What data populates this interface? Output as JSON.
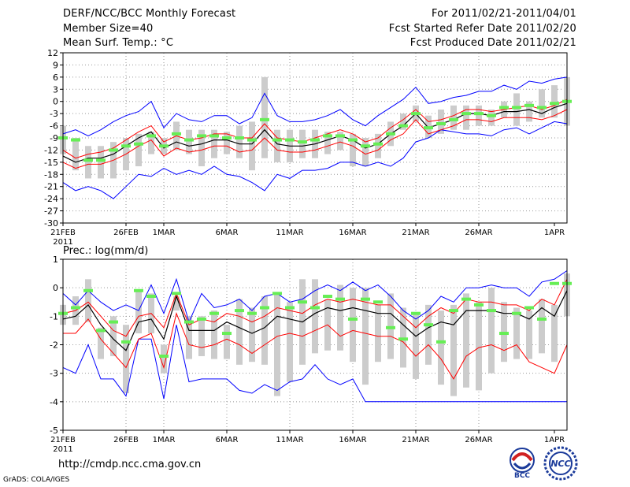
{
  "header": {
    "title": "DERF/NCC/BCC Monthly Forecast",
    "member_size": "Member Size=40",
    "variable": "Mean Surf. Temp.: °C",
    "for_range": "For 2011/02/21-2011/04/01",
    "started": "Fcst Started Refer Date 2011/02/20",
    "produced": "Fcst Produced Date 2011/02/21"
  },
  "precip_title": "Prec.: log(mm/d)",
  "footer": {
    "url": "http://cmdp.ncc.cma.gov.cn",
    "credit": "GrADS: COLA/IGES",
    "logo1_text": "BCC",
    "logo2_text": "NCC"
  },
  "colors": {
    "box": "#cccccc",
    "obs": "#66ee55",
    "spread": "#ff0000",
    "extreme": "#0000ff",
    "mean": "#000000",
    "grid": "#999999"
  },
  "chart_data": [
    {
      "type": "line",
      "title": "Mean Surf. Temp.: °C",
      "days": 40,
      "x_tick_labels": [
        "21FEB",
        "26FEB",
        "1MAR",
        "6MAR",
        "11MAR",
        "16MAR",
        "21MAR",
        "26MAR",
        "1APR"
      ],
      "x_tick_days": [
        0,
        5,
        8,
        13,
        18,
        23,
        28,
        33,
        39
      ],
      "year_label": "2011",
      "ylim": [
        -30,
        12
      ],
      "yticks": [
        -30,
        -27,
        -24,
        -21,
        -18,
        -15,
        -12,
        -9,
        -6,
        -3,
        0,
        3,
        6,
        9,
        12
      ],
      "series": [
        {
          "name": "max",
          "values": [
            -8,
            -7,
            -8.5,
            -7,
            -5,
            -3.5,
            -2.5,
            0,
            -6.5,
            -3,
            -4.5,
            -5,
            -3.5,
            -3.5,
            -5.5,
            -4,
            2,
            -3.5,
            -5,
            -5,
            -4.5,
            -3.5,
            -2,
            -4.5,
            -6,
            -3.5,
            -1.5,
            0.5,
            3.5,
            -0.5,
            0,
            1,
            1.5,
            2.5,
            2.5,
            4,
            3,
            5,
            4.5,
            5.5,
            6
          ]
        },
        {
          "name": "upper",
          "values": [
            -12,
            -14,
            -13,
            -12.5,
            -11.5,
            -9.5,
            -7.5,
            -6,
            -10,
            -8.5,
            -9.5,
            -9,
            -8,
            -8,
            -9,
            -9,
            -5.5,
            -9,
            -9.5,
            -10,
            -9,
            -8,
            -7,
            -8,
            -10,
            -9,
            -6.5,
            -4.5,
            -2,
            -5,
            -4.5,
            -3.5,
            -2,
            -2,
            -2.5,
            -2,
            -1.5,
            -1,
            -2,
            -1,
            0.5
          ]
        },
        {
          "name": "mean",
          "values": [
            -13.5,
            -15,
            -14,
            -14,
            -13,
            -11,
            -9,
            -7.5,
            -11.5,
            -10,
            -11,
            -10.5,
            -9.5,
            -9.5,
            -10.5,
            -10.5,
            -7,
            -10.5,
            -11,
            -11,
            -10.5,
            -9.5,
            -8.5,
            -9.5,
            -11.5,
            -10.5,
            -8,
            -6,
            -3,
            -6.5,
            -5.5,
            -4.5,
            -3,
            -3,
            -3.5,
            -2.5,
            -2.5,
            -2,
            -3,
            -1.5,
            -0.5
          ]
        },
        {
          "name": "lower",
          "values": [
            -15,
            -16.5,
            -15.5,
            -15.5,
            -14.5,
            -13,
            -11,
            -9.5,
            -13.5,
            -11.5,
            -12.5,
            -12,
            -11,
            -11,
            -12.5,
            -12,
            -9,
            -12,
            -12.5,
            -12.5,
            -12,
            -11,
            -10,
            -11,
            -13,
            -12,
            -9.5,
            -8,
            -4.5,
            -8,
            -7,
            -6,
            -4.5,
            -4.5,
            -5,
            -4,
            -4,
            -4,
            -4.5,
            -3.5,
            -2
          ]
        },
        {
          "name": "min",
          "values": [
            -20,
            -22,
            -21,
            -22,
            -24,
            -21,
            -18,
            -18.5,
            -16.5,
            -18,
            -17,
            -18,
            -16,
            -18,
            -18.5,
            -20,
            -22,
            -18,
            -19,
            -17,
            -17,
            -16.5,
            -15,
            -15,
            -16,
            -15,
            -16,
            -14,
            -10,
            -9,
            -7,
            -7.5,
            -8,
            -8,
            -8.5,
            -7,
            -6.5,
            -8,
            -6.5,
            -5,
            -5.5
          ]
        },
        {
          "name": "box_top",
          "values": [
            -6,
            -9,
            -11,
            -11,
            -10,
            -9,
            -8,
            -7.5,
            -9,
            -5,
            -7,
            -7,
            -7,
            -7.5,
            -6,
            -5,
            6,
            -7,
            -7,
            -7,
            -7,
            -7.5,
            -7.5,
            -8,
            -9,
            -8,
            -5,
            -3,
            -1,
            -3.5,
            -2,
            -1,
            -1,
            -1,
            -2,
            0,
            2,
            0,
            3,
            4,
            6
          ]
        },
        {
          "name": "box_bottom",
          "values": [
            -13,
            -17,
            -19,
            -19,
            -19,
            -17,
            -16,
            -13,
            -13,
            -12,
            -13,
            -16,
            -14,
            -13,
            -14,
            -17,
            -14,
            -15,
            -15,
            -14,
            -14,
            -13,
            -12,
            -16,
            -16,
            -14,
            -11,
            -7,
            -5,
            -9,
            -8,
            -7,
            -7,
            -6,
            -6,
            -4,
            -6,
            -5,
            -4,
            -4,
            -6
          ]
        },
        {
          "name": "obs",
          "values": [
            -9,
            -9.5,
            -14.5,
            -14.5,
            -12,
            -11,
            -10.5,
            -8.5,
            -11,
            -8,
            -9.5,
            -8.5,
            -8.5,
            -9,
            -9,
            -9.5,
            -4.5,
            -9.5,
            -9.5,
            -10,
            -9.5,
            -8.5,
            -8.5,
            -9.5,
            -11,
            -10.5,
            -8,
            -6,
            -3,
            -6.5,
            -5.5,
            -4.5,
            -3,
            -3,
            -3.5,
            -1.5,
            -1.5,
            -1,
            -1.5,
            -0.5,
            0
          ]
        }
      ]
    },
    {
      "type": "line",
      "title": "Prec.: log(mm/d)",
      "days": 40,
      "x_tick_labels": [
        "21FEB",
        "26FEB",
        "1MAR",
        "6MAR",
        "11MAR",
        "16MAR",
        "21MAR",
        "26MAR",
        "1APR"
      ],
      "x_tick_days": [
        0,
        5,
        8,
        13,
        18,
        23,
        28,
        33,
        39
      ],
      "year_label": "2011",
      "ylim": [
        -5,
        1
      ],
      "yticks": [
        -5,
        -4,
        -3,
        -2,
        -1,
        0,
        1
      ],
      "series": [
        {
          "name": "max",
          "values": [
            -0.2,
            -0.6,
            -0.1,
            -0.5,
            -0.8,
            -0.6,
            -0.8,
            0.1,
            -0.9,
            0.3,
            -1.2,
            -0.2,
            -0.7,
            -0.6,
            -0.4,
            -0.8,
            -0.3,
            -0.2,
            -0.5,
            -0.4,
            -0.1,
            0.1,
            -0.1,
            0.2,
            -0.1,
            0.1,
            -0.3,
            -0.8,
            -1.1,
            -0.8,
            -0.3,
            -0.5,
            0.0,
            0.0,
            0.1,
            0.0,
            0.0,
            -0.3,
            0.2,
            0.3,
            0.6
          ]
        },
        {
          "name": "upper",
          "values": [
            -0.9,
            -0.8,
            -0.5,
            -1.0,
            -1.5,
            -1.7,
            -1.0,
            -0.9,
            -1.4,
            -0.2,
            -1.3,
            -1.1,
            -1.2,
            -0.9,
            -1.0,
            -1.2,
            -1.0,
            -0.7,
            -0.8,
            -0.9,
            -0.6,
            -0.4,
            -0.5,
            -0.4,
            -0.5,
            -0.6,
            -0.6,
            -1.0,
            -1.4,
            -1.0,
            -0.7,
            -0.9,
            -0.4,
            -0.5,
            -0.5,
            -0.6,
            -0.6,
            -0.8,
            -0.4,
            -0.6,
            0.3
          ]
        },
        {
          "name": "mean",
          "values": [
            -1.1,
            -1.0,
            -0.6,
            -1.3,
            -1.8,
            -2.2,
            -1.2,
            -1.1,
            -1.8,
            -0.3,
            -1.5,
            -1.5,
            -1.5,
            -1.2,
            -1.4,
            -1.6,
            -1.4,
            -1.0,
            -1.1,
            -1.2,
            -0.9,
            -0.7,
            -0.8,
            -0.7,
            -0.8,
            -0.9,
            -0.9,
            -1.3,
            -1.7,
            -1.4,
            -1.2,
            -1.3,
            -0.8,
            -0.8,
            -0.8,
            -0.9,
            -0.9,
            -1.1,
            -0.7,
            -1.0,
            -0.1
          ]
        },
        {
          "name": "lower",
          "values": [
            -1.6,
            -1.6,
            -1.1,
            -1.8,
            -2.3,
            -2.8,
            -1.8,
            -1.6,
            -2.8,
            -0.9,
            -2.0,
            -2.1,
            -2.0,
            -1.8,
            -2.0,
            -2.3,
            -2.0,
            -1.7,
            -1.6,
            -1.7,
            -1.5,
            -1.3,
            -1.7,
            -1.5,
            -1.6,
            -1.7,
            -1.7,
            -1.9,
            -2.4,
            -2.0,
            -2.5,
            -3.2,
            -2.4,
            -2.1,
            -2.0,
            -2.2,
            -2.0,
            -2.6,
            -2.8,
            -3.0,
            -2.0
          ]
        },
        {
          "name": "min",
          "values": [
            -2.8,
            -3.0,
            -2.0,
            -3.2,
            -3.2,
            -3.8,
            -1.8,
            -1.8,
            -3.9,
            -1.3,
            -3.3,
            -3.2,
            -3.2,
            -3.2,
            -3.6,
            -3.7,
            -3.4,
            -3.6,
            -3.3,
            -3.2,
            -2.7,
            -3.2,
            -3.4,
            -3.2,
            -4.0,
            -4.0,
            -4.0,
            -4.0,
            -4.0,
            -4.0,
            -4.0,
            -4.0,
            -4.0,
            -4.0,
            -4.0,
            -4.0,
            -4.0,
            -4.0,
            -4.0,
            -4.0,
            -4.0
          ]
        },
        {
          "name": "box_top",
          "values": [
            -0.6,
            -0.3,
            0.3,
            -1.4,
            -1.0,
            -1.3,
            -0.1,
            -0.2,
            -2.0,
            -0.3,
            -1.0,
            -1.0,
            -0.8,
            -1.3,
            -0.4,
            -0.7,
            -0.3,
            -0.2,
            -0.5,
            0.3,
            0.3,
            -0.4,
            0.1,
            0.0,
            0.0,
            -0.6,
            -0.2,
            -0.7,
            -0.9,
            -0.6,
            -0.8,
            -0.6,
            -0.2,
            -0.5,
            0.0,
            -0.5,
            -0.7,
            -0.8,
            -0.4,
            -0.6,
            0.5
          ]
        },
        {
          "name": "box_bottom",
          "values": [
            -1.3,
            -1.3,
            -1.2,
            -2.5,
            -2.4,
            -3.7,
            -1.6,
            -1.6,
            -3.0,
            -0.8,
            -2.5,
            -2.4,
            -2.5,
            -2.5,
            -2.7,
            -2.6,
            -2.7,
            -3.8,
            -3.3,
            -2.7,
            -2.3,
            -2.2,
            -2.2,
            -2.6,
            -3.4,
            -2.6,
            -2.5,
            -2.8,
            -3.2,
            -2.7,
            -3.4,
            -3.8,
            -3.5,
            -3.6,
            -3.0,
            -2.6,
            -2.5,
            -2.5,
            -2.3,
            -2.6,
            -1.0
          ]
        },
        {
          "name": "obs",
          "values": [
            -0.9,
            -0.7,
            -0.1,
            -1.5,
            -1.2,
            -1.9,
            -0.1,
            -0.3,
            -2.4,
            -0.2,
            -1.2,
            -1.1,
            -0.9,
            -1.6,
            -0.8,
            -0.9,
            -0.7,
            -0.2,
            -0.7,
            -0.5,
            -0.7,
            -0.3,
            -0.4,
            -1.1,
            -0.4,
            -0.5,
            -1.4,
            -1.8,
            -0.9,
            -1.3,
            -1.9,
            -0.8,
            -0.4,
            -0.6,
            -0.8,
            -1.6,
            -0.9,
            -0.7,
            -1.1,
            0.15,
            0.15
          ]
        }
      ]
    }
  ]
}
